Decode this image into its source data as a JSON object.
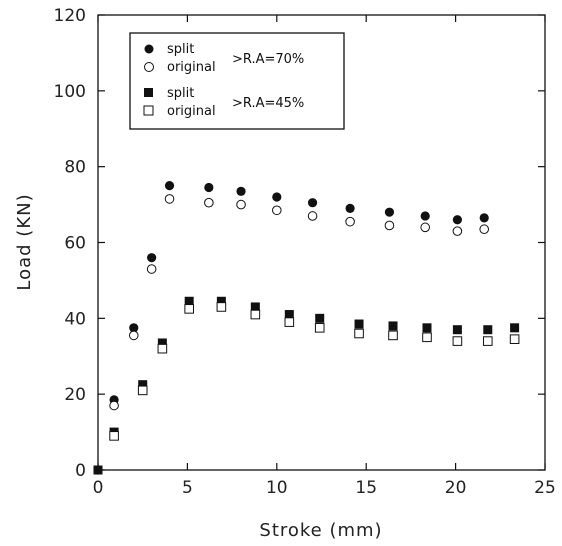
{
  "chart_data": {
    "type": "scatter",
    "xlabel": "Stroke (mm)",
    "ylabel": "Load (KN)",
    "xlim": [
      0,
      25
    ],
    "ylim": [
      0,
      120
    ],
    "xticks": [
      0,
      5,
      10,
      15,
      20,
      25
    ],
    "yticks": [
      0,
      20,
      40,
      60,
      80,
      100,
      120
    ],
    "grid": false,
    "legend_position": "top-left",
    "legend_groups": [
      {
        "label": ">R.A=70%",
        "entries": [
          "split",
          "original"
        ]
      },
      {
        "label": ">R.A=45%",
        "entries": [
          "split",
          "original"
        ]
      }
    ],
    "series": [
      {
        "name": "split",
        "marker": "filled-circle",
        "group": "R.A=70%",
        "x": [
          0,
          0.9,
          2.0,
          3.0,
          4.0,
          6.2,
          8.0,
          10.0,
          12.0,
          14.1,
          16.3,
          18.3,
          20.1,
          21.6
        ],
        "y": [
          0,
          18.5,
          37.5,
          56,
          75,
          74.5,
          73.5,
          72,
          70.5,
          69,
          68,
          67,
          66,
          66.5
        ]
      },
      {
        "name": "original",
        "marker": "open-circle",
        "group": "R.A=70%",
        "x": [
          0.9,
          2.0,
          3.0,
          4.0,
          6.2,
          8.0,
          10.0,
          12.0,
          14.1,
          16.3,
          18.3,
          20.1,
          21.6
        ],
        "y": [
          17,
          35.5,
          53,
          71.5,
          70.5,
          70,
          68.5,
          67,
          65.5,
          64.5,
          64,
          63,
          63.5
        ]
      },
      {
        "name": "split",
        "marker": "filled-square",
        "group": "R.A=45%",
        "x": [
          0,
          0.9,
          2.5,
          3.6,
          5.1,
          6.9,
          8.8,
          10.7,
          12.4,
          14.6,
          16.5,
          18.4,
          20.1,
          21.8,
          23.3
        ],
        "y": [
          0,
          10,
          22.5,
          33.5,
          44.5,
          44.5,
          43,
          41,
          40,
          38.5,
          38,
          37.5,
          37,
          37,
          37.5
        ]
      },
      {
        "name": "original",
        "marker": "open-square",
        "group": "R.A=45%",
        "x": [
          0.9,
          2.5,
          3.6,
          5.1,
          6.9,
          8.8,
          10.7,
          12.4,
          14.6,
          16.5,
          18.4,
          20.1,
          21.8,
          23.3
        ],
        "y": [
          9,
          21,
          32,
          42.5,
          43,
          41,
          39,
          37.5,
          36,
          35.5,
          35,
          34,
          34,
          34.5
        ]
      }
    ]
  }
}
